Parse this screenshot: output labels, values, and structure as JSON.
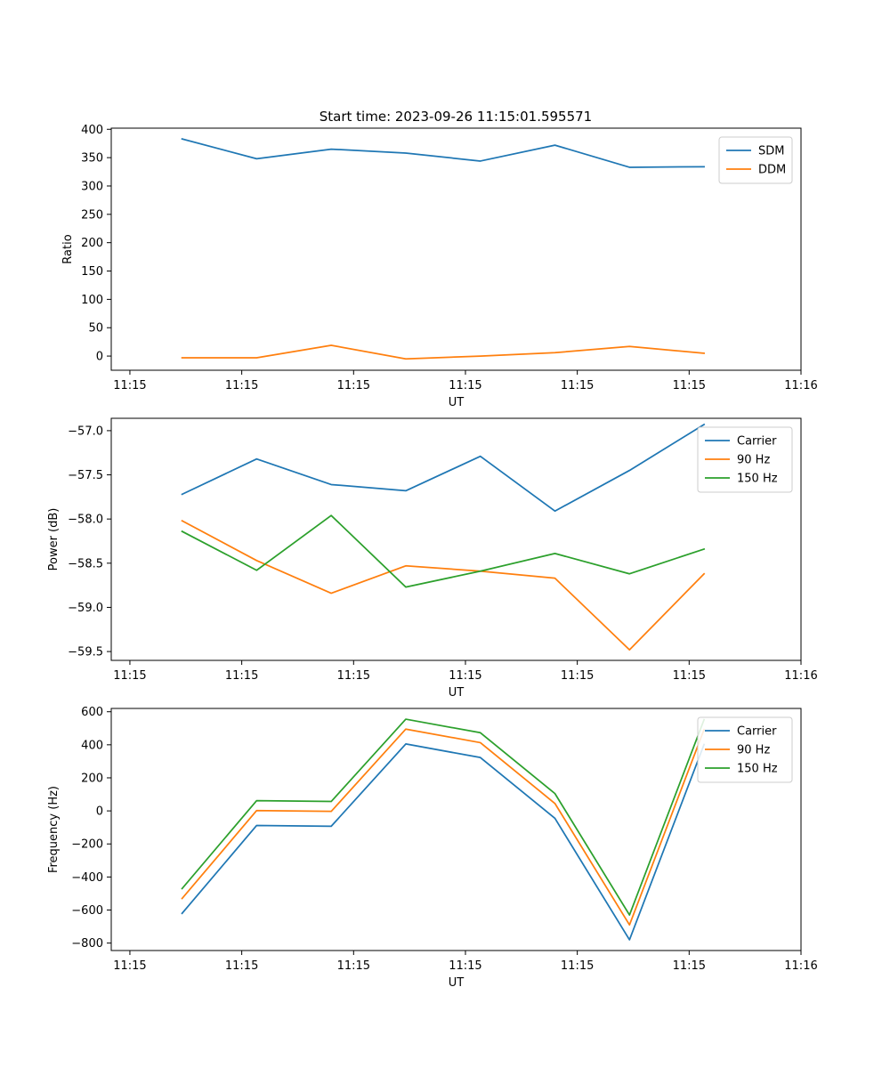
{
  "figure": {
    "title": "Start time: 2023-09-26 11:15:01.595571"
  },
  "chart_data": [
    {
      "type": "line",
      "xlabel": "UT",
      "ylabel": "Ratio",
      "xlim": [
        -0.25,
        9.0
      ],
      "x_ticks": [
        {
          "x": 0,
          "label": "11:15"
        },
        {
          "x": 1.5,
          "label": "11:15"
        },
        {
          "x": 3,
          "label": "11:15"
        },
        {
          "x": 4.5,
          "label": "11:15"
        },
        {
          "x": 6,
          "label": "11:15"
        },
        {
          "x": 7.5,
          "label": "11:15"
        },
        {
          "x": 9,
          "label": "11:16"
        }
      ],
      "ylim": [
        -25,
        402
      ],
      "y_ticks": [
        0,
        50,
        100,
        150,
        200,
        250,
        300,
        350,
        400
      ],
      "y_tick_labels": [
        "0",
        "50",
        "100",
        "150",
        "200",
        "250",
        "300",
        "350",
        "400"
      ],
      "x": [
        0.7,
        1.7,
        2.7,
        3.7,
        4.7,
        5.7,
        6.7,
        7.7
      ],
      "series": [
        {
          "name": "SDM",
          "color": "#1f77b4",
          "values": [
            383,
            348,
            365,
            358,
            344,
            372,
            333,
            334
          ]
        },
        {
          "name": "DDM",
          "color": "#ff7f0e",
          "values": [
            -3,
            -3,
            19,
            -5,
            0,
            6,
            17,
            5
          ]
        }
      ],
      "legend": "top-right"
    },
    {
      "type": "line",
      "xlabel": "UT",
      "ylabel": "Power (dB)",
      "xlim": [
        -0.25,
        9.0
      ],
      "x_ticks": [
        {
          "x": 0,
          "label": "11:15"
        },
        {
          "x": 1.5,
          "label": "11:15"
        },
        {
          "x": 3,
          "label": "11:15"
        },
        {
          "x": 4.5,
          "label": "11:15"
        },
        {
          "x": 6,
          "label": "11:15"
        },
        {
          "x": 7.5,
          "label": "11:15"
        },
        {
          "x": 9,
          "label": "11:16"
        }
      ],
      "ylim": [
        -59.6,
        -56.86
      ],
      "y_ticks": [
        -59.5,
        -59.0,
        -58.5,
        -58.0,
        -57.5,
        -57.0
      ],
      "y_tick_labels": [
        "−59.5",
        "−59.0",
        "−58.5",
        "−58.0",
        "−57.5",
        "−57.0"
      ],
      "x": [
        0.7,
        1.7,
        2.7,
        3.7,
        4.7,
        5.7,
        6.7,
        7.7
      ],
      "series": [
        {
          "name": "Carrier",
          "color": "#1f77b4",
          "values": [
            -57.72,
            -57.32,
            -57.61,
            -57.68,
            -57.29,
            -57.91,
            -57.45,
            -56.93
          ]
        },
        {
          "name": "90 Hz",
          "color": "#ff7f0e",
          "values": [
            -58.02,
            -58.47,
            -58.84,
            -58.53,
            -58.59,
            -58.67,
            -59.48,
            -58.62
          ]
        },
        {
          "name": "150 Hz",
          "color": "#2ca02c",
          "values": [
            -58.14,
            -58.58,
            -57.96,
            -58.77,
            -58.59,
            -58.39,
            -58.62,
            -58.34
          ]
        }
      ],
      "legend": "top-right"
    },
    {
      "type": "line",
      "xlabel": "UT",
      "ylabel": "Frequency (Hz)",
      "xlim": [
        -0.25,
        9.0
      ],
      "x_ticks": [
        {
          "x": 0,
          "label": "11:15"
        },
        {
          "x": 1.5,
          "label": "11:15"
        },
        {
          "x": 3,
          "label": "11:15"
        },
        {
          "x": 4.5,
          "label": "11:15"
        },
        {
          "x": 6,
          "label": "11:15"
        },
        {
          "x": 7.5,
          "label": "11:15"
        },
        {
          "x": 9,
          "label": "11:16"
        }
      ],
      "ylim": [
        -845,
        620
      ],
      "y_ticks": [
        -800,
        -600,
        -400,
        -200,
        0,
        200,
        400,
        600
      ],
      "y_tick_labels": [
        "−800",
        "−600",
        "−400",
        "−200",
        "0",
        "200",
        "400",
        "600"
      ],
      "x": [
        0.7,
        1.7,
        2.7,
        3.7,
        4.7,
        5.7,
        6.7,
        7.7
      ],
      "series": [
        {
          "name": "Carrier",
          "color": "#1f77b4",
          "values": [
            -620,
            -88,
            -93,
            405,
            323,
            -45,
            -780,
            402
          ]
        },
        {
          "name": "90 Hz",
          "color": "#ff7f0e",
          "values": [
            -530,
            2,
            -3,
            495,
            413,
            45,
            -690,
            492
          ]
        },
        {
          "name": "150 Hz",
          "color": "#2ca02c",
          "values": [
            -470,
            62,
            57,
            555,
            473,
            105,
            -630,
            552
          ]
        }
      ],
      "legend": "top-right"
    }
  ]
}
